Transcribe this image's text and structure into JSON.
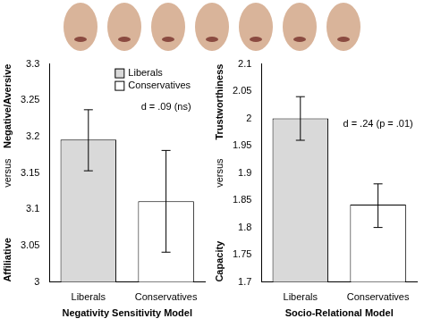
{
  "chart_data": [
    {
      "type": "bar",
      "categories": [
        "Liberals",
        "Conservatives"
      ],
      "values": [
        3.196,
        3.111
      ],
      "error_bars": [
        [
          3.153,
          3.237
        ],
        [
          3.041,
          3.181
        ]
      ],
      "colors": [
        "#d9d9d9",
        "#ffffff"
      ],
      "ylim": [
        3,
        3.3
      ],
      "yticks": [
        3,
        3.05,
        3.1,
        3.15,
        3.2,
        3.25,
        3.3
      ],
      "y_label": [
        "Negative/Aversive",
        "versus",
        "Affiliative"
      ],
      "x_label": "Negativity Sensitivity Model",
      "annotation": "d = .09 (ns)",
      "legend": "top",
      "grid": false
    },
    {
      "type": "bar",
      "categories": [
        "Liberals",
        "Conservatives"
      ],
      "values": [
        2.0,
        1.842
      ],
      "error_bars": [
        [
          1.96,
          2.04
        ],
        [
          1.8,
          1.88
        ]
      ],
      "colors": [
        "#d9d9d9",
        "#ffffff"
      ],
      "ylim": [
        1.7,
        2.1
      ],
      "yticks": [
        1.7,
        1.75,
        1.8,
        1.85,
        1.9,
        1.95,
        2,
        2.05,
        2.1
      ],
      "y_label": [
        "Trustworthiness",
        "versus",
        "Capacity"
      ],
      "x_label": "Socio-Relational Model",
      "annotation": "d = .24 (p = .01)",
      "grid": false
    }
  ]
}
